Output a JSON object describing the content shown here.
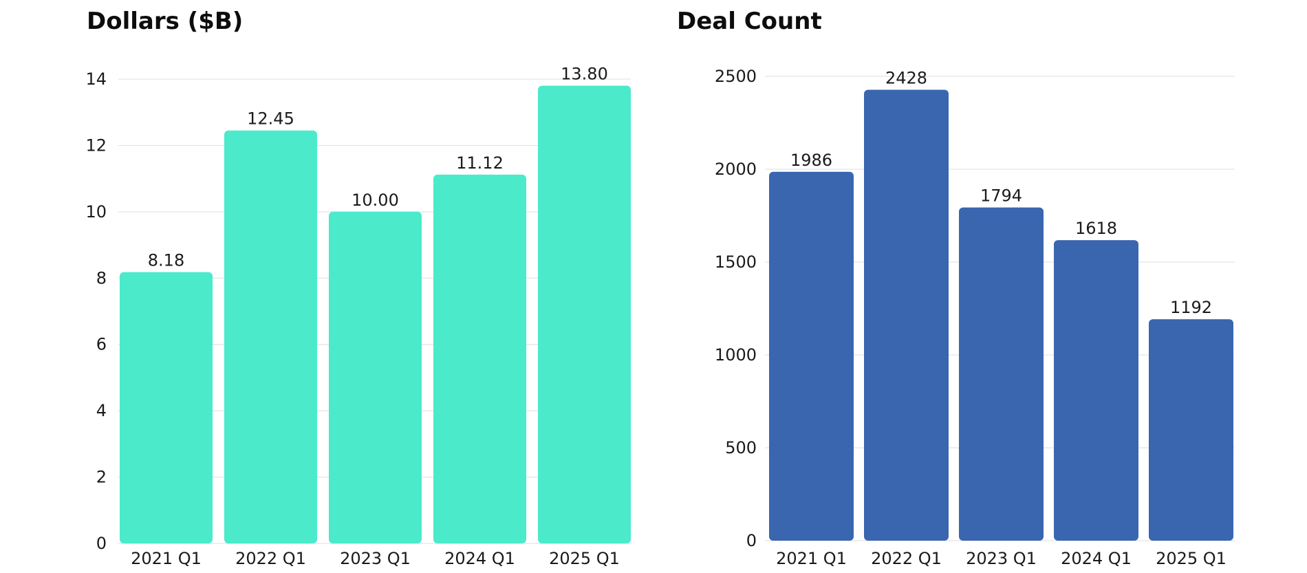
{
  "chart_data": [
    {
      "type": "bar",
      "title": "Dollars ($B)",
      "xlabel": "",
      "ylabel": "",
      "categories": [
        "2021 Q1",
        "2022 Q1",
        "2023 Q1",
        "2024 Q1",
        "2025 Q1"
      ],
      "values": [
        8.18,
        12.45,
        10.0,
        11.12,
        13.8
      ],
      "value_labels": [
        "8.18",
        "12.45",
        "10.00",
        "11.12",
        "13.80"
      ],
      "ylim": [
        0,
        14
      ],
      "yticks": [
        0,
        2,
        4,
        6,
        8,
        10,
        12,
        14
      ],
      "color": "#4aeacb",
      "grid": true,
      "legend": "none"
    },
    {
      "type": "bar",
      "title": "Deal Count",
      "xlabel": "",
      "ylabel": "",
      "categories": [
        "2021 Q1",
        "2022 Q1",
        "2023 Q1",
        "2024 Q1",
        "2025 Q1"
      ],
      "values": [
        1986,
        2428,
        1794,
        1618,
        1192
      ],
      "value_labels": [
        "1986",
        "2428",
        "1794",
        "1618",
        "1192"
      ],
      "ylim": [
        0,
        2500
      ],
      "yticks": [
        0,
        500,
        1000,
        1500,
        2000,
        2500
      ],
      "color": "#3966af",
      "grid": true,
      "legend": "none"
    }
  ]
}
